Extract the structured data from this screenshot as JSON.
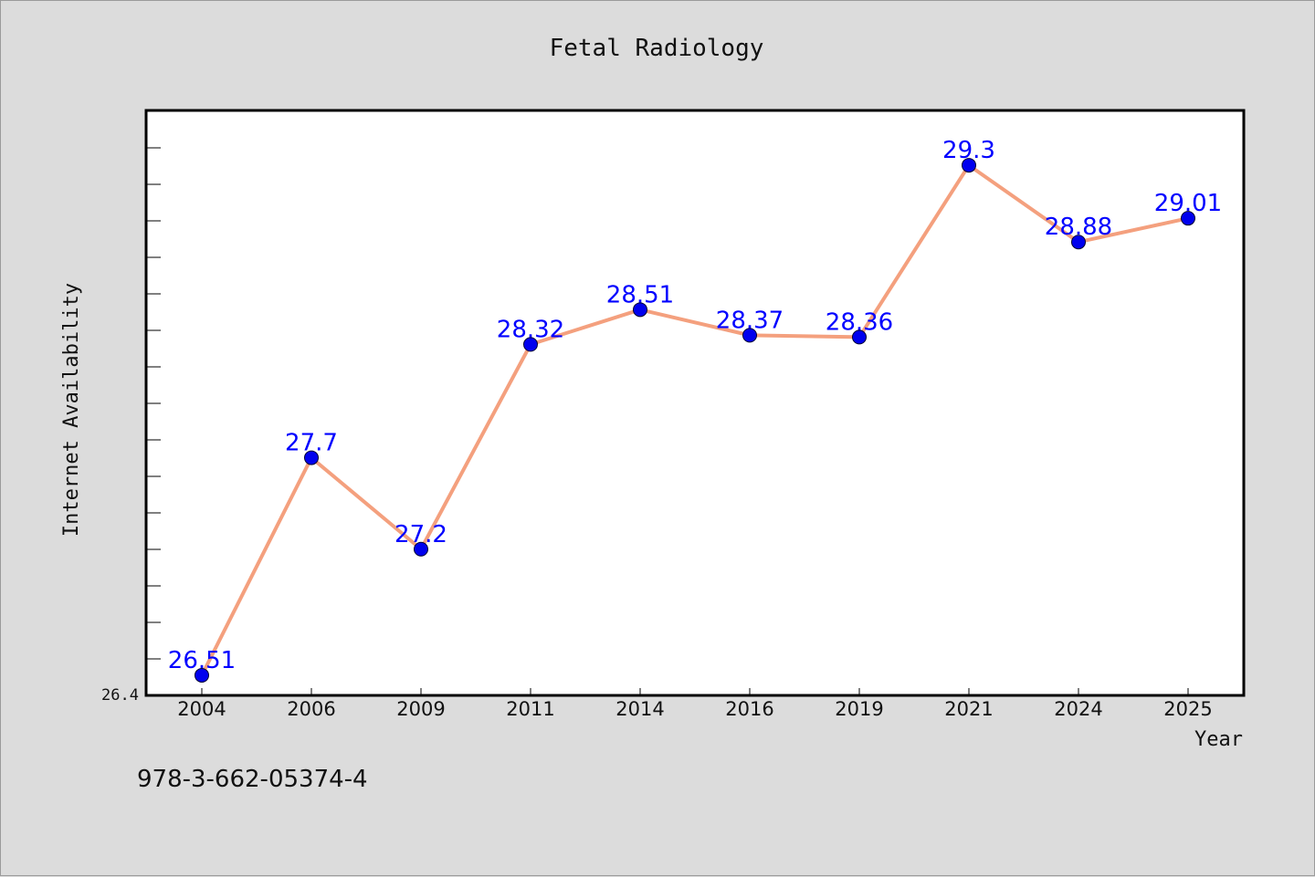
{
  "footer": {
    "isbn": "978-3-662-05374-4"
  },
  "colors": {
    "background": "#dcdcdc",
    "plot_background": "#ffffff",
    "line": "#f4a07e",
    "marker": "#0000ee",
    "data_label": "#0000ff"
  },
  "chart_data": {
    "type": "line",
    "title": "Fetal Radiology",
    "xlabel": "Year",
    "ylabel": "Internet Availability",
    "categories": [
      "2004",
      "2006",
      "2009",
      "2011",
      "2014",
      "2016",
      "2019",
      "2021",
      "2024",
      "2025"
    ],
    "series": [
      {
        "values": [
          26.51,
          27.7,
          27.2,
          28.32,
          28.51,
          28.37,
          28.36,
          29.3,
          28.88,
          29.01
        ]
      }
    ],
    "data_labels": [
      "26.51",
      "27.7",
      "27.2",
      "28.32",
      "28.51",
      "28.37",
      "28.36",
      "29.3",
      "28.88",
      "29.01"
    ],
    "y_tick_labels": [
      "26.4"
    ],
    "ylim": [
      26.4,
      29.6
    ],
    "grid": false,
    "legend": "none"
  }
}
